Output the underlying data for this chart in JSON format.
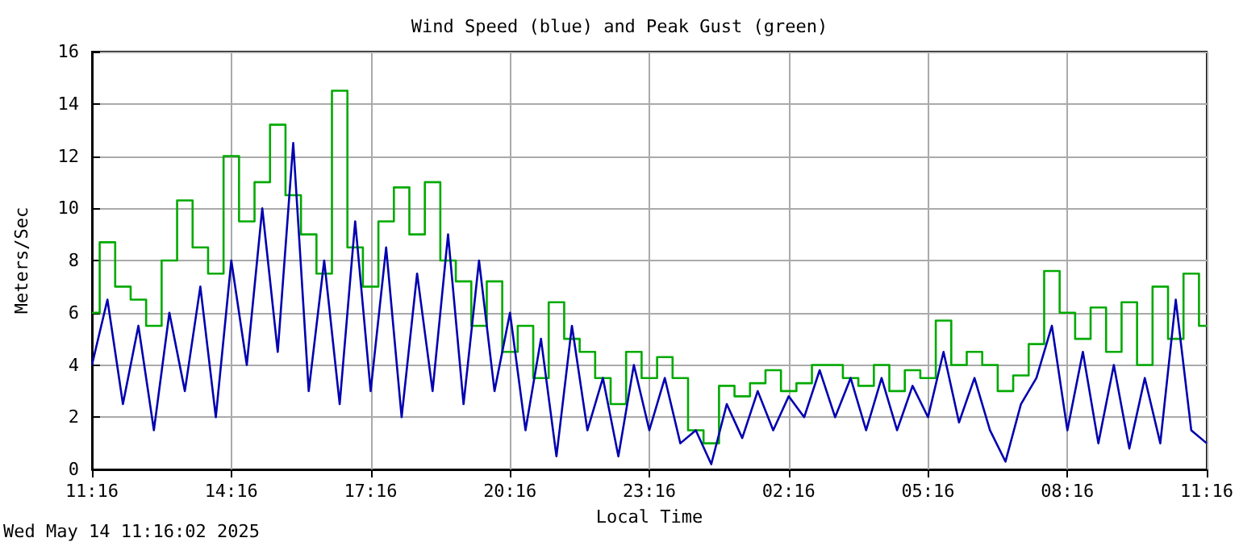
{
  "chart_data": {
    "type": "line",
    "title": "Wind Speed (blue) and Peak Gust (green)",
    "xlabel": "Local Time",
    "ylabel": "Meters/Sec",
    "annotations": [
      "Wed May 14 11:16:02 2025"
    ],
    "x": [
      "2025-05-13T11:16",
      "2025-05-13T11:36",
      "2025-05-13T11:56",
      "2025-05-13T12:16",
      "2025-05-13T12:36",
      "2025-05-13T12:56",
      "2025-05-13T13:16",
      "2025-05-13T13:36",
      "2025-05-13T13:56",
      "2025-05-13T14:16",
      "2025-05-13T14:36",
      "2025-05-13T14:56",
      "2025-05-13T15:16",
      "2025-05-13T15:36",
      "2025-05-13T15:56",
      "2025-05-13T16:16",
      "2025-05-13T16:36",
      "2025-05-13T16:56",
      "2025-05-13T17:16",
      "2025-05-13T17:36",
      "2025-05-13T17:56",
      "2025-05-13T18:16",
      "2025-05-13T18:36",
      "2025-05-13T18:56",
      "2025-05-13T19:16",
      "2025-05-13T19:36",
      "2025-05-13T19:56",
      "2025-05-13T20:16",
      "2025-05-13T20:36",
      "2025-05-13T20:56",
      "2025-05-13T21:16",
      "2025-05-13T21:36",
      "2025-05-13T21:56",
      "2025-05-13T22:16",
      "2025-05-13T22:36",
      "2025-05-13T22:56",
      "2025-05-13T23:16",
      "2025-05-13T23:36",
      "2025-05-13T23:56",
      "2025-05-14T00:16",
      "2025-05-14T00:36",
      "2025-05-14T00:56",
      "2025-05-14T01:16",
      "2025-05-14T01:36",
      "2025-05-14T01:56",
      "2025-05-14T02:16",
      "2025-05-14T02:36",
      "2025-05-14T02:56",
      "2025-05-14T03:16",
      "2025-05-14T03:36",
      "2025-05-14T03:56",
      "2025-05-14T04:16",
      "2025-05-14T04:36",
      "2025-05-14T04:56",
      "2025-05-14T05:16",
      "2025-05-14T05:36",
      "2025-05-14T05:56",
      "2025-05-14T06:16",
      "2025-05-14T06:36",
      "2025-05-14T06:56",
      "2025-05-14T07:16",
      "2025-05-14T07:36",
      "2025-05-14T07:56",
      "2025-05-14T08:16",
      "2025-05-14T08:36",
      "2025-05-14T08:56",
      "2025-05-14T09:16",
      "2025-05-14T09:36",
      "2025-05-14T09:56",
      "2025-05-14T10:16",
      "2025-05-14T10:36",
      "2025-05-14T10:56",
      "2025-05-14T11:16"
    ],
    "series": [
      {
        "type": "step",
        "color": "#00aa00",
        "values": [
          6,
          8.7,
          7,
          6.5,
          5.5,
          8,
          10.3,
          8.5,
          7.5,
          12,
          9.5,
          11,
          13.2,
          10.5,
          9,
          7.5,
          14.5,
          8.5,
          7,
          9.5,
          10.8,
          9,
          11,
          8,
          7.2,
          5.5,
          7.2,
          4.5,
          5.5,
          3.5,
          6.4,
          5,
          4.5,
          3.5,
          2.5,
          4.5,
          3.5,
          4.3,
          3.5,
          1.5,
          1,
          3.2,
          2.8,
          3.3,
          3.8,
          3,
          3.3,
          4,
          4,
          3.5,
          3.2,
          4,
          3,
          3.8,
          3.5,
          5.7,
          4,
          4.5,
          4,
          3,
          3.6,
          4.8,
          7.6,
          6,
          5,
          6.2,
          4.5,
          6.4,
          4,
          7,
          5,
          7.5,
          5.5
        ]
      },
      {
        "color": "#0000b0",
        "values": [
          4,
          6.5,
          2.5,
          5.5,
          1.5,
          6,
          3,
          7,
          2,
          8,
          4,
          10,
          4.5,
          12.5,
          3,
          8,
          2.5,
          9.5,
          3,
          8.5,
          2,
          7.5,
          3,
          9,
          2.5,
          8,
          3,
          6,
          1.5,
          5,
          0.5,
          5.5,
          1.5,
          3.5,
          0.5,
          4,
          1.5,
          3.5,
          1,
          1.5,
          0.2,
          2.5,
          1.2,
          3,
          1.5,
          2.8,
          2,
          3.8,
          2,
          3.5,
          1.5,
          3.5,
          1.5,
          3.2,
          2,
          4.5,
          1.8,
          3.5,
          1.5,
          0.3,
          2.5,
          3.5,
          5.5,
          1.5,
          4.5,
          1,
          4,
          0.8,
          3.5,
          1,
          6.5,
          1.5,
          1
        ]
      }
    ],
    "xlim": [
      "2025-05-13T11:16",
      "2025-05-14T11:16"
    ],
    "xticks": [
      {
        "value": "2025-05-13T11:16",
        "label": "11:16"
      },
      {
        "value": "2025-05-13T14:16",
        "label": "14:16"
      },
      {
        "value": "2025-05-13T17:16",
        "label": "17:16"
      },
      {
        "value": "2025-05-13T20:16",
        "label": "20:16"
      },
      {
        "value": "2025-05-13T23:16",
        "label": "23:16"
      },
      {
        "value": "2025-05-14T02:16",
        "label": "02:16"
      },
      {
        "value": "2025-05-14T05:16",
        "label": "05:16"
      },
      {
        "value": "2025-05-14T08:16",
        "label": "08:16"
      },
      {
        "value": "2025-05-14T11:16",
        "label": "11:16"
      }
    ],
    "ylim": [
      0,
      16
    ],
    "yticks": [
      0,
      2,
      4,
      6,
      8,
      10,
      12,
      14,
      16
    ],
    "grid": true,
    "marker": "none"
  }
}
